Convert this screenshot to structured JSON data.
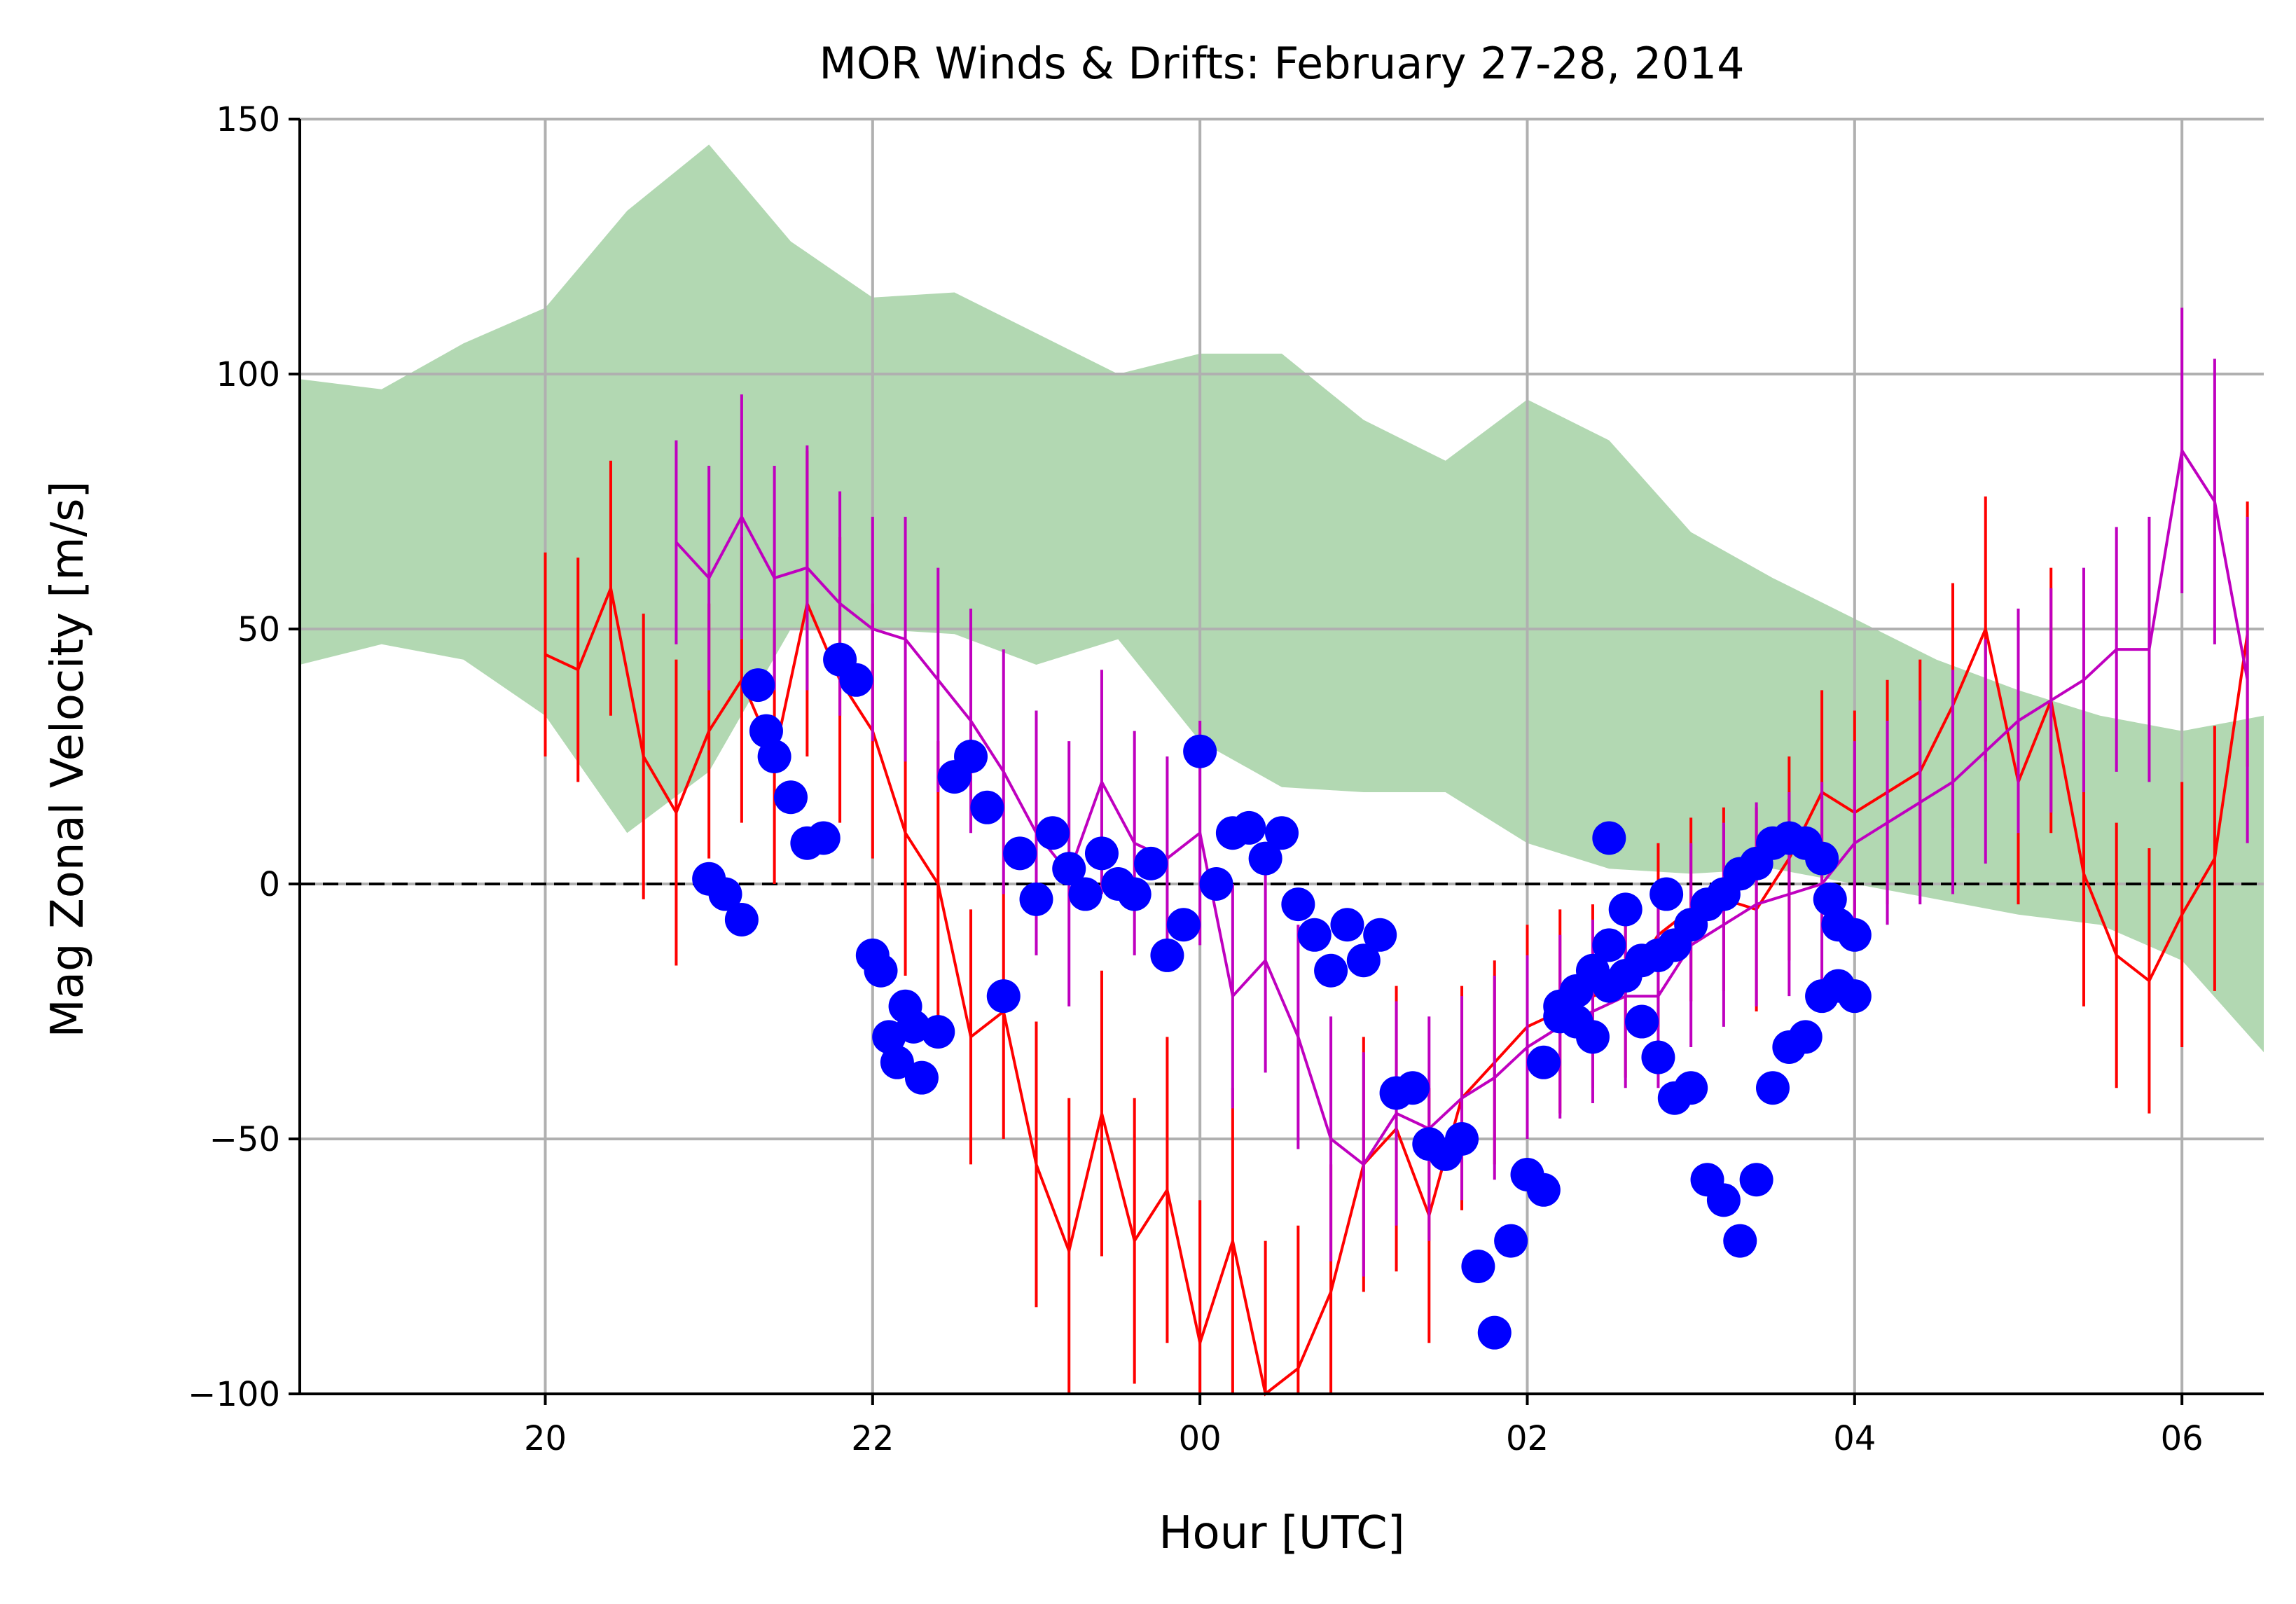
{
  "chart_data": {
    "type": "line",
    "title": "MOR Winds & Drifts: February 27-28, 2014",
    "xlabel": "Hour [UTC]",
    "ylabel": "Mag Zonal Velocity [m/s]",
    "x_units": "hours since 2014-02-27 00:00 UTC",
    "xlim": [
      18.5,
      30.5
    ],
    "ylim": [
      -100,
      150
    ],
    "grid": true,
    "zero_line": {
      "y": 0,
      "style": "dashed"
    },
    "x_ticks": [
      {
        "value": 20,
        "label": "20"
      },
      {
        "value": 22,
        "label": "22"
      },
      {
        "value": 24,
        "label": "00"
      },
      {
        "value": 26,
        "label": "02"
      },
      {
        "value": 28,
        "label": "04"
      },
      {
        "value": 30,
        "label": "06"
      }
    ],
    "y_ticks": [
      {
        "value": 150,
        "label": "150"
      },
      {
        "value": 100,
        "label": "100"
      },
      {
        "value": 50,
        "label": "50"
      },
      {
        "value": 0,
        "label": "0"
      },
      {
        "value": -50,
        "label": "−50"
      },
      {
        "value": -100,
        "label": "−100"
      }
    ],
    "colors": {
      "band": "#b2d8b2",
      "red": "#ff0000",
      "magenta": "#bf00bf",
      "dots": "#0000ff"
    },
    "band": {
      "x": [
        18.5,
        19.0,
        19.5,
        20.0,
        20.5,
        21.0,
        21.5,
        22.0,
        22.5,
        23.0,
        23.5,
        24.0,
        24.5,
        25.0,
        25.5,
        26.0,
        26.5,
        27.0,
        27.5,
        28.0,
        28.5,
        29.0,
        29.5,
        30.0,
        30.5
      ],
      "upper": [
        99,
        97,
        106,
        113,
        132,
        145,
        126,
        115,
        116,
        108,
        100,
        104,
        104,
        91,
        83,
        95,
        87,
        69,
        60,
        52,
        44,
        38,
        33,
        30,
        33
      ],
      "lower": [
        43,
        47,
        44,
        33,
        10,
        22,
        50,
        50,
        49,
        43,
        48,
        28,
        19,
        18,
        18,
        8,
        3,
        2,
        3,
        0,
        -3,
        -6,
        -8,
        -15,
        -33
      ]
    },
    "series": [
      {
        "color": "#ff0000",
        "x": [
          20.0,
          20.2,
          20.4,
          20.6,
          20.8,
          21.0,
          21.2,
          21.4,
          21.6,
          21.8,
          22.0,
          22.2,
          22.4,
          22.6,
          22.8,
          23.0,
          23.2,
          23.4,
          23.6,
          23.8,
          24.0,
          24.2,
          24.4,
          24.6,
          24.8,
          25.0,
          25.2,
          25.4,
          25.6,
          25.8,
          26.0,
          26.2,
          26.4,
          26.6,
          26.8,
          27.0,
          27.2,
          27.4,
          27.6,
          27.8,
          28.0,
          28.2,
          28.4,
          28.6,
          28.8,
          29.0,
          29.2,
          29.4,
          29.6,
          29.8,
          30.0,
          30.2,
          30.4
        ],
        "y": [
          45,
          42,
          58,
          25,
          14,
          30,
          40,
          25,
          55,
          40,
          30,
          10,
          0,
          -30,
          -25,
          -55,
          -72,
          -45,
          -70,
          -60,
          -90,
          -70,
          -100,
          -95,
          -80,
          -55,
          -48,
          -65,
          -42,
          -35,
          -28,
          -25,
          -22,
          -20,
          -10,
          -5,
          -3,
          -5,
          5,
          18,
          14,
          18,
          22,
          35,
          50,
          20,
          36,
          2,
          -14,
          -19,
          -6,
          5,
          49
        ],
        "err": [
          20,
          22,
          25,
          28,
          30,
          25,
          28,
          25,
          30,
          28,
          25,
          28,
          28,
          25,
          25,
          28,
          30,
          28,
          28,
          30,
          28,
          30,
          30,
          28,
          25,
          25,
          28,
          25,
          22,
          20,
          20,
          20,
          18,
          18,
          18,
          18,
          18,
          20,
          20,
          20,
          20,
          22,
          22,
          24,
          26,
          24,
          26,
          26,
          26,
          26,
          26,
          26,
          26
        ]
      },
      {
        "color": "#bf00bf",
        "x": [
          20.8,
          21.0,
          21.2,
          21.4,
          21.6,
          21.8,
          22.0,
          22.2,
          22.4,
          22.6,
          22.8,
          23.0,
          23.2,
          23.4,
          23.6,
          23.8,
          24.0,
          24.2,
          24.4,
          24.6,
          24.8,
          25.0,
          25.2,
          25.4,
          25.6,
          25.8,
          26.0,
          26.2,
          26.4,
          26.6,
          26.8,
          27.0,
          27.2,
          27.4,
          27.6,
          27.8,
          28.0,
          28.2,
          28.4,
          28.6,
          28.8,
          29.0,
          29.2,
          29.4,
          29.6,
          29.8,
          30.0,
          30.2,
          30.4
        ],
        "y": [
          67,
          60,
          72,
          60,
          62,
          55,
          50,
          48,
          40,
          32,
          22,
          10,
          2,
          20,
          8,
          5,
          10,
          -22,
          -15,
          -30,
          -50,
          -55,
          -45,
          -48,
          -42,
          -38,
          -32,
          -28,
          -25,
          -22,
          -22,
          -12,
          -8,
          -4,
          -2,
          0,
          8,
          12,
          16,
          20,
          26,
          32,
          36,
          40,
          46,
          46,
          85,
          75,
          40
        ],
        "err": [
          20,
          22,
          24,
          22,
          24,
          22,
          22,
          24,
          22,
          22,
          24,
          24,
          26,
          22,
          22,
          20,
          22,
          22,
          22,
          22,
          24,
          22,
          22,
          22,
          20,
          20,
          18,
          18,
          18,
          18,
          18,
          20,
          20,
          20,
          20,
          20,
          20,
          20,
          20,
          22,
          22,
          22,
          22,
          22,
          24,
          26,
          28,
          28,
          32
        ]
      },
      {
        "type": "scatter",
        "color": "#0000ff",
        "x": [
          21.0,
          21.1,
          21.2,
          21.3,
          21.35,
          21.4,
          21.5,
          21.6,
          21.7,
          21.8,
          21.9,
          22.0,
          22.05,
          22.1,
          22.15,
          22.2,
          22.25,
          22.3,
          22.4,
          22.5,
          22.6,
          22.7,
          22.8,
          22.9,
          23.0,
          23.1,
          23.2,
          23.3,
          23.4,
          23.5,
          23.6,
          23.7,
          23.8,
          23.9,
          24.0,
          24.1,
          24.2,
          24.3,
          24.4,
          24.5,
          24.6,
          24.7,
          24.8,
          24.9,
          25.0,
          25.1,
          25.2,
          25.3,
          25.4,
          25.5,
          25.6,
          25.7,
          25.8,
          25.9,
          26.0,
          26.1,
          26.2,
          26.3,
          26.4,
          26.5,
          26.6,
          26.7,
          26.8,
          26.9,
          27.0,
          27.1,
          27.2,
          27.3,
          27.4,
          27.5,
          27.6,
          27.7,
          27.8,
          27.9,
          28.0
        ],
        "y": [
          1,
          -2,
          -7,
          39,
          30,
          25,
          17,
          8,
          9,
          44,
          40,
          -14,
          -17,
          -30,
          -35,
          -24,
          -28,
          -38,
          -29,
          21,
          25,
          15,
          -22,
          6,
          -3,
          10,
          3,
          -2,
          6,
          0,
          -2,
          4,
          -14,
          -8,
          26,
          0,
          10,
          11,
          5,
          10,
          -4,
          -10,
          -17,
          -8,
          -15,
          -10,
          -41,
          -40,
          -51,
          -53,
          -50,
          -75,
          -88,
          -70,
          -57,
          -60,
          -26,
          -27,
          -17,
          -12,
          -5,
          -27,
          -34,
          -42,
          -40,
          -58,
          -62,
          -70,
          -58,
          -40,
          -32,
          -30,
          -22,
          -20,
          -22
        ],
        "extra": [
          {
            "x": 26.5,
            "y": 9
          },
          {
            "x": 26.85,
            "y": -2
          },
          {
            "x": 26.1,
            "y": -35
          },
          {
            "x": 26.2,
            "y": -24
          },
          {
            "x": 26.3,
            "y": -21
          },
          {
            "x": 26.4,
            "y": -30
          },
          {
            "x": 26.5,
            "y": -20
          },
          {
            "x": 26.6,
            "y": -18
          },
          {
            "x": 26.7,
            "y": -15
          },
          {
            "x": 26.8,
            "y": -14
          },
          {
            "x": 26.9,
            "y": -12
          },
          {
            "x": 27.0,
            "y": -8
          },
          {
            "x": 27.1,
            "y": -4
          },
          {
            "x": 27.2,
            "y": -2
          },
          {
            "x": 27.3,
            "y": 2
          },
          {
            "x": 27.4,
            "y": 4
          },
          {
            "x": 27.5,
            "y": 8
          },
          {
            "x": 27.6,
            "y": 9
          },
          {
            "x": 27.7,
            "y": 8
          },
          {
            "x": 27.8,
            "y": 5
          },
          {
            "x": 27.85,
            "y": -3
          },
          {
            "x": 27.9,
            "y": -8
          },
          {
            "x": 28.0,
            "y": -10
          }
        ]
      }
    ]
  }
}
